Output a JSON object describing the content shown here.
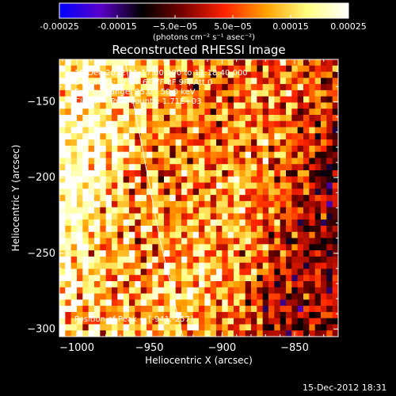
{
  "chart_data": {
    "type": "heatmap",
    "title": "Reconstructed RHESSI Image",
    "xlabel": "Heliocentric X (arcsec)",
    "ylabel": "Heliocentric Y (arcsec)",
    "xlim": [
      -1012,
      -820
    ],
    "ylim": [
      -305,
      -122
    ],
    "x_ticks": [
      -1000,
      -950,
      -900,
      -850
    ],
    "x_tick_labels": [
      "−1000",
      "−950",
      "−900",
      "−850"
    ],
    "y_ticks": [
      -150,
      -200,
      -250,
      -300
    ],
    "y_tick_labels": [
      "−150",
      "−200",
      "−250",
      "−300"
    ],
    "annotations": [
      "15-Dec-2012 11:17:00.000 to 11:18:40.000",
      "Detectors: 3F 5F 6F 7F 8F 9F, Att 0",
      "Energy Range: 25.0 - 50.0 keV",
      "Clean     Total counts: 1.71E+03"
    ],
    "peak_label": "Position of Peak = [-941,-257]",
    "peak_position": [
      -941,
      -257
    ],
    "colorbar": {
      "range": [
        -0.00025,
        0.00025
      ],
      "tick_labels": [
        "-0.00025",
        "-0.00015",
        "−5.0e−05",
        "5.0e−05",
        "0.00015",
        "0.00025"
      ],
      "unit_label": "(photons cm⁻² s⁻¹ asec⁻²)",
      "colors": [
        "#0000ff",
        "#5a00c8",
        "#000000",
        "#7a0000",
        "#ff2200",
        "#ffa000",
        "#ffff80",
        "#ffffff"
      ]
    },
    "limb_curve": [
      [
        -967,
        -122
      ],
      [
        -955,
        -180
      ],
      [
        -943,
        -240
      ],
      [
        -927,
        -305
      ]
    ]
  },
  "timestamp": "15-Dec-2012 18:31"
}
